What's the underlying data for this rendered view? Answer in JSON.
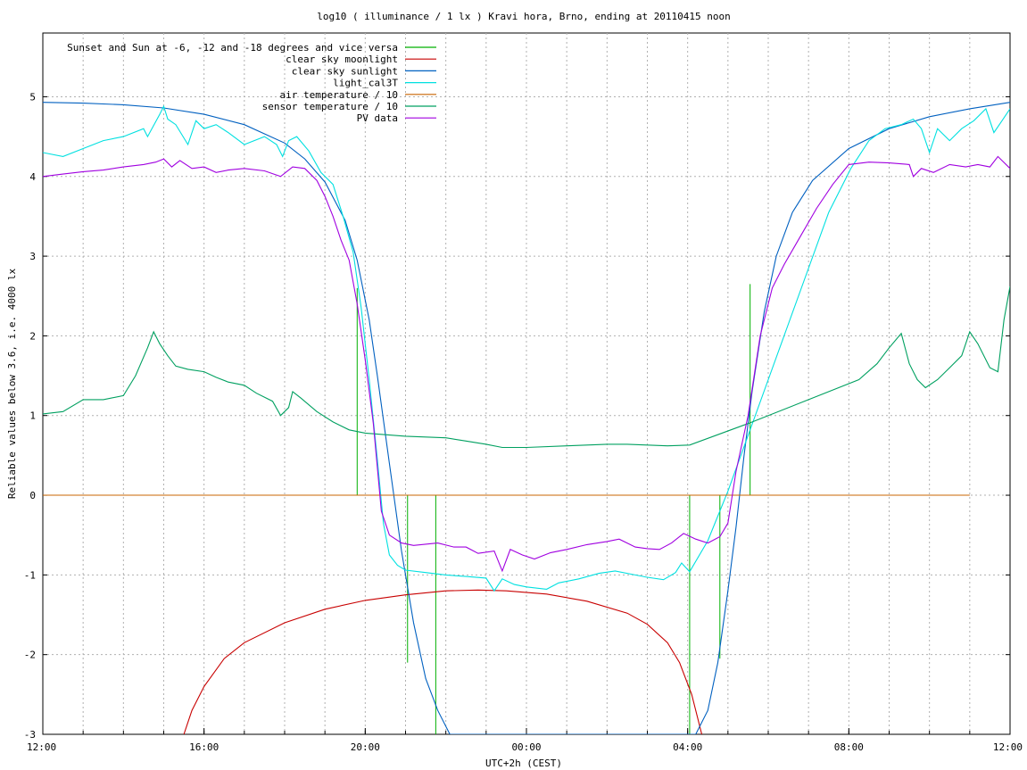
{
  "chart_data": {
    "type": "line",
    "title": "log10 ( illuminance / 1 lx ) Kravi hora, Brno, ending at 20110415 noon",
    "xlabel": "UTC+2h (CEST)",
    "ylabel": "Reliable values below 3.6, i.e. 4000 lx",
    "x_unit": "hours since 12:00 (UTC+2h)",
    "xlim": [
      0,
      24
    ],
    "ylim": [
      -3,
      5.8
    ],
    "x_ticks": [
      {
        "x": 0,
        "label": "12:00"
      },
      {
        "x": 4,
        "label": "16:00"
      },
      {
        "x": 8,
        "label": "20:00"
      },
      {
        "x": 12,
        "label": "00:00"
      },
      {
        "x": 16,
        "label": "04:00"
      },
      {
        "x": 20,
        "label": "08:00"
      },
      {
        "x": 24,
        "label": "12:00"
      }
    ],
    "y_ticks": [
      {
        "y": -3,
        "label": "-3"
      },
      {
        "y": -2,
        "label": "-2"
      },
      {
        "y": -1,
        "label": "-1"
      },
      {
        "y": 0,
        "label": "0"
      },
      {
        "y": 1,
        "label": "1"
      },
      {
        "y": 2,
        "label": "2"
      },
      {
        "y": 3,
        "label": "3"
      },
      {
        "y": 4,
        "label": "4"
      },
      {
        "y": 5,
        "label": "5"
      }
    ],
    "grid": true,
    "legend_position": "top-left",
    "series": [
      {
        "name": "Sunset and Sun at -6, -12 and -18 degrees and vice versa",
        "color": "#00b000",
        "style": "impulses",
        "points": [
          [
            7.8,
            0
          ],
          [
            7.8,
            2.6
          ],
          [
            9.05,
            0
          ],
          [
            9.05,
            -2.1
          ],
          [
            9.75,
            0
          ],
          [
            9.75,
            -3
          ],
          [
            16.05,
            0
          ],
          [
            16.05,
            -3
          ],
          [
            16.8,
            0
          ],
          [
            16.8,
            -2.05
          ],
          [
            17.55,
            0
          ],
          [
            17.55,
            2.65
          ]
        ]
      },
      {
        "name": "clear sky moonlight",
        "color": "#c80000",
        "points": [
          [
            3.5,
            -3
          ],
          [
            3.7,
            -2.7
          ],
          [
            4.0,
            -2.4
          ],
          [
            4.5,
            -2.05
          ],
          [
            5.0,
            -1.85
          ],
          [
            6.0,
            -1.6
          ],
          [
            7.0,
            -1.43
          ],
          [
            8.0,
            -1.32
          ],
          [
            9.0,
            -1.25
          ],
          [
            10.0,
            -1.2
          ],
          [
            10.8,
            -1.19
          ],
          [
            11.5,
            -1.2
          ],
          [
            12.5,
            -1.24
          ],
          [
            13.5,
            -1.33
          ],
          [
            14.5,
            -1.48
          ],
          [
            15.0,
            -1.62
          ],
          [
            15.5,
            -1.85
          ],
          [
            15.8,
            -2.1
          ],
          [
            16.1,
            -2.5
          ],
          [
            16.25,
            -2.8
          ],
          [
            16.35,
            -3
          ]
        ]
      },
      {
        "name": "clear sky sunlight",
        "color": "#0060c0",
        "points": [
          [
            0,
            4.93
          ],
          [
            1,
            4.92
          ],
          [
            2,
            4.9
          ],
          [
            3,
            4.86
          ],
          [
            4,
            4.78
          ],
          [
            5,
            4.65
          ],
          [
            6,
            4.42
          ],
          [
            6.5,
            4.22
          ],
          [
            7,
            3.93
          ],
          [
            7.5,
            3.45
          ],
          [
            7.8,
            2.95
          ],
          [
            8.1,
            2.2
          ],
          [
            8.3,
            1.5
          ],
          [
            8.6,
            0.4
          ],
          [
            8.9,
            -0.7
          ],
          [
            9.2,
            -1.6
          ],
          [
            9.5,
            -2.3
          ],
          [
            9.8,
            -2.7
          ],
          [
            10.1,
            -3
          ],
          [
            16.2,
            -3
          ],
          [
            16.5,
            -2.7
          ],
          [
            16.75,
            -2.1
          ],
          [
            17.0,
            -1.2
          ],
          [
            17.2,
            -0.4
          ],
          [
            17.4,
            0.5
          ],
          [
            17.6,
            1.3
          ],
          [
            17.9,
            2.3
          ],
          [
            18.2,
            3.0
          ],
          [
            18.6,
            3.55
          ],
          [
            19.1,
            3.95
          ],
          [
            20,
            4.35
          ],
          [
            21,
            4.6
          ],
          [
            22,
            4.75
          ],
          [
            23,
            4.85
          ],
          [
            24,
            4.93
          ]
        ]
      },
      {
        "name": "light_cal3T",
        "color": "#00e0e0",
        "points": [
          [
            0,
            4.3
          ],
          [
            0.5,
            4.25
          ],
          [
            1,
            4.35
          ],
          [
            1.5,
            4.45
          ],
          [
            2,
            4.5
          ],
          [
            2.5,
            4.6
          ],
          [
            2.6,
            4.5
          ],
          [
            2.9,
            4.78
          ],
          [
            3.0,
            4.88
          ],
          [
            3.1,
            4.72
          ],
          [
            3.3,
            4.65
          ],
          [
            3.6,
            4.4
          ],
          [
            3.8,
            4.7
          ],
          [
            4.0,
            4.6
          ],
          [
            4.3,
            4.65
          ],
          [
            4.6,
            4.55
          ],
          [
            5.0,
            4.4
          ],
          [
            5.5,
            4.5
          ],
          [
            5.8,
            4.4
          ],
          [
            5.95,
            4.25
          ],
          [
            6.1,
            4.45
          ],
          [
            6.3,
            4.5
          ],
          [
            6.6,
            4.32
          ],
          [
            6.9,
            4.05
          ],
          [
            7.2,
            3.9
          ],
          [
            7.45,
            3.5
          ],
          [
            7.7,
            3.05
          ],
          [
            7.9,
            2.35
          ],
          [
            8.1,
            1.45
          ],
          [
            8.3,
            0.45
          ],
          [
            8.45,
            -0.35
          ],
          [
            8.6,
            -0.75
          ],
          [
            8.8,
            -0.88
          ],
          [
            9.0,
            -0.94
          ],
          [
            9.5,
            -0.97
          ],
          [
            10,
            -1.0
          ],
          [
            10.5,
            -1.02
          ],
          [
            11,
            -1.04
          ],
          [
            11.2,
            -1.2
          ],
          [
            11.4,
            -1.05
          ],
          [
            11.7,
            -1.12
          ],
          [
            12,
            -1.15
          ],
          [
            12.5,
            -1.18
          ],
          [
            12.8,
            -1.1
          ],
          [
            13.3,
            -1.05
          ],
          [
            13.8,
            -0.98
          ],
          [
            14.2,
            -0.95
          ],
          [
            14.6,
            -0.99
          ],
          [
            15,
            -1.03
          ],
          [
            15.4,
            -1.06
          ],
          [
            15.7,
            -0.97
          ],
          [
            15.85,
            -0.85
          ],
          [
            16.05,
            -0.96
          ],
          [
            16.5,
            -0.57
          ],
          [
            17.0,
            0.05
          ],
          [
            17.5,
            0.75
          ],
          [
            18.0,
            1.45
          ],
          [
            18.5,
            2.15
          ],
          [
            19.0,
            2.85
          ],
          [
            19.5,
            3.55
          ],
          [
            20.05,
            4.1
          ],
          [
            20.5,
            4.45
          ],
          [
            20.9,
            4.6
          ],
          [
            21.3,
            4.65
          ],
          [
            21.6,
            4.72
          ],
          [
            21.8,
            4.6
          ],
          [
            22.0,
            4.3
          ],
          [
            22.2,
            4.6
          ],
          [
            22.5,
            4.45
          ],
          [
            22.8,
            4.6
          ],
          [
            23.1,
            4.7
          ],
          [
            23.4,
            4.85
          ],
          [
            23.6,
            4.55
          ],
          [
            23.8,
            4.7
          ],
          [
            24,
            4.85
          ]
        ]
      },
      {
        "name": "air temperature / 10",
        "color": "#c86400",
        "points": [
          [
            0,
            0
          ],
          [
            23.0,
            0
          ]
        ]
      },
      {
        "name": "sensor temperature / 10",
        "color": "#00a060",
        "points": [
          [
            0,
            1.02
          ],
          [
            0.5,
            1.05
          ],
          [
            1,
            1.2
          ],
          [
            1.5,
            1.2
          ],
          [
            2,
            1.25
          ],
          [
            2.3,
            1.5
          ],
          [
            2.6,
            1.85
          ],
          [
            2.75,
            2.05
          ],
          [
            2.9,
            1.9
          ],
          [
            3.1,
            1.75
          ],
          [
            3.3,
            1.62
          ],
          [
            3.6,
            1.58
          ],
          [
            4.0,
            1.55
          ],
          [
            4.3,
            1.48
          ],
          [
            4.6,
            1.42
          ],
          [
            5.0,
            1.38
          ],
          [
            5.3,
            1.28
          ],
          [
            5.7,
            1.18
          ],
          [
            5.9,
            1.0
          ],
          [
            6.1,
            1.1
          ],
          [
            6.2,
            1.3
          ],
          [
            6.4,
            1.22
          ],
          [
            6.8,
            1.05
          ],
          [
            7.2,
            0.92
          ],
          [
            7.6,
            0.82
          ],
          [
            8,
            0.78
          ],
          [
            8.5,
            0.76
          ],
          [
            9,
            0.74
          ],
          [
            9.5,
            0.73
          ],
          [
            10,
            0.72
          ],
          [
            10.5,
            0.68
          ],
          [
            11,
            0.64
          ],
          [
            11.4,
            0.6
          ],
          [
            12,
            0.6
          ],
          [
            13,
            0.62
          ],
          [
            14,
            0.64
          ],
          [
            14.5,
            0.64
          ],
          [
            15,
            0.63
          ],
          [
            15.5,
            0.62
          ],
          [
            16.05,
            0.63
          ],
          [
            17.5,
            0.9
          ],
          [
            19,
            1.2
          ],
          [
            20.25,
            1.45
          ],
          [
            20.7,
            1.65
          ],
          [
            21.0,
            1.85
          ],
          [
            21.3,
            2.03
          ],
          [
            21.5,
            1.65
          ],
          [
            21.7,
            1.45
          ],
          [
            21.9,
            1.35
          ],
          [
            22.2,
            1.45
          ],
          [
            22.5,
            1.6
          ],
          [
            22.8,
            1.75
          ],
          [
            23.0,
            2.05
          ],
          [
            23.2,
            1.9
          ],
          [
            23.5,
            1.6
          ],
          [
            23.7,
            1.55
          ],
          [
            23.85,
            2.2
          ],
          [
            24,
            2.62
          ]
        ]
      },
      {
        "name": "PV data",
        "color": "#a000e0",
        "points": [
          [
            0,
            4.0
          ],
          [
            0.5,
            4.03
          ],
          [
            1,
            4.06
          ],
          [
            1.5,
            4.08
          ],
          [
            2,
            4.12
          ],
          [
            2.5,
            4.15
          ],
          [
            2.8,
            4.18
          ],
          [
            3.0,
            4.22
          ],
          [
            3.2,
            4.12
          ],
          [
            3.4,
            4.2
          ],
          [
            3.7,
            4.1
          ],
          [
            4.0,
            4.12
          ],
          [
            4.3,
            4.05
          ],
          [
            4.6,
            4.08
          ],
          [
            5,
            4.1
          ],
          [
            5.5,
            4.07
          ],
          [
            5.9,
            4.0
          ],
          [
            6.2,
            4.12
          ],
          [
            6.5,
            4.1
          ],
          [
            6.8,
            3.95
          ],
          [
            7.0,
            3.75
          ],
          [
            7.2,
            3.5
          ],
          [
            7.4,
            3.2
          ],
          [
            7.6,
            2.95
          ],
          [
            7.8,
            2.4
          ],
          [
            8.0,
            1.7
          ],
          [
            8.2,
            0.9
          ],
          [
            8.4,
            -0.2
          ],
          [
            8.6,
            -0.5
          ],
          [
            8.9,
            -0.6
          ],
          [
            9.2,
            -0.63
          ],
          [
            9.8,
            -0.6
          ],
          [
            10.2,
            -0.65
          ],
          [
            10.5,
            -0.65
          ],
          [
            10.8,
            -0.73
          ],
          [
            11.2,
            -0.7
          ],
          [
            11.4,
            -0.95
          ],
          [
            11.6,
            -0.68
          ],
          [
            11.9,
            -0.75
          ],
          [
            12.2,
            -0.8
          ],
          [
            12.6,
            -0.72
          ],
          [
            13.0,
            -0.68
          ],
          [
            13.5,
            -0.62
          ],
          [
            14.0,
            -0.58
          ],
          [
            14.3,
            -0.55
          ],
          [
            14.7,
            -0.65
          ],
          [
            15.0,
            -0.67
          ],
          [
            15.3,
            -0.68
          ],
          [
            15.6,
            -0.6
          ],
          [
            15.9,
            -0.48
          ],
          [
            16.2,
            -0.55
          ],
          [
            16.5,
            -0.6
          ],
          [
            16.8,
            -0.52
          ],
          [
            17.0,
            -0.35
          ],
          [
            17.2,
            0.3
          ],
          [
            17.5,
            1.0
          ],
          [
            17.8,
            2.0
          ],
          [
            18.1,
            2.6
          ],
          [
            18.4,
            2.9
          ],
          [
            18.8,
            3.25
          ],
          [
            19.2,
            3.6
          ],
          [
            19.6,
            3.9
          ],
          [
            20.0,
            4.15
          ],
          [
            20.5,
            4.18
          ],
          [
            21,
            4.17
          ],
          [
            21.5,
            4.15
          ],
          [
            21.6,
            4.0
          ],
          [
            21.8,
            4.1
          ],
          [
            22.1,
            4.05
          ],
          [
            22.5,
            4.15
          ],
          [
            22.9,
            4.12
          ],
          [
            23.2,
            4.15
          ],
          [
            23.5,
            4.12
          ],
          [
            23.7,
            4.25
          ],
          [
            24,
            4.1
          ]
        ]
      }
    ]
  }
}
